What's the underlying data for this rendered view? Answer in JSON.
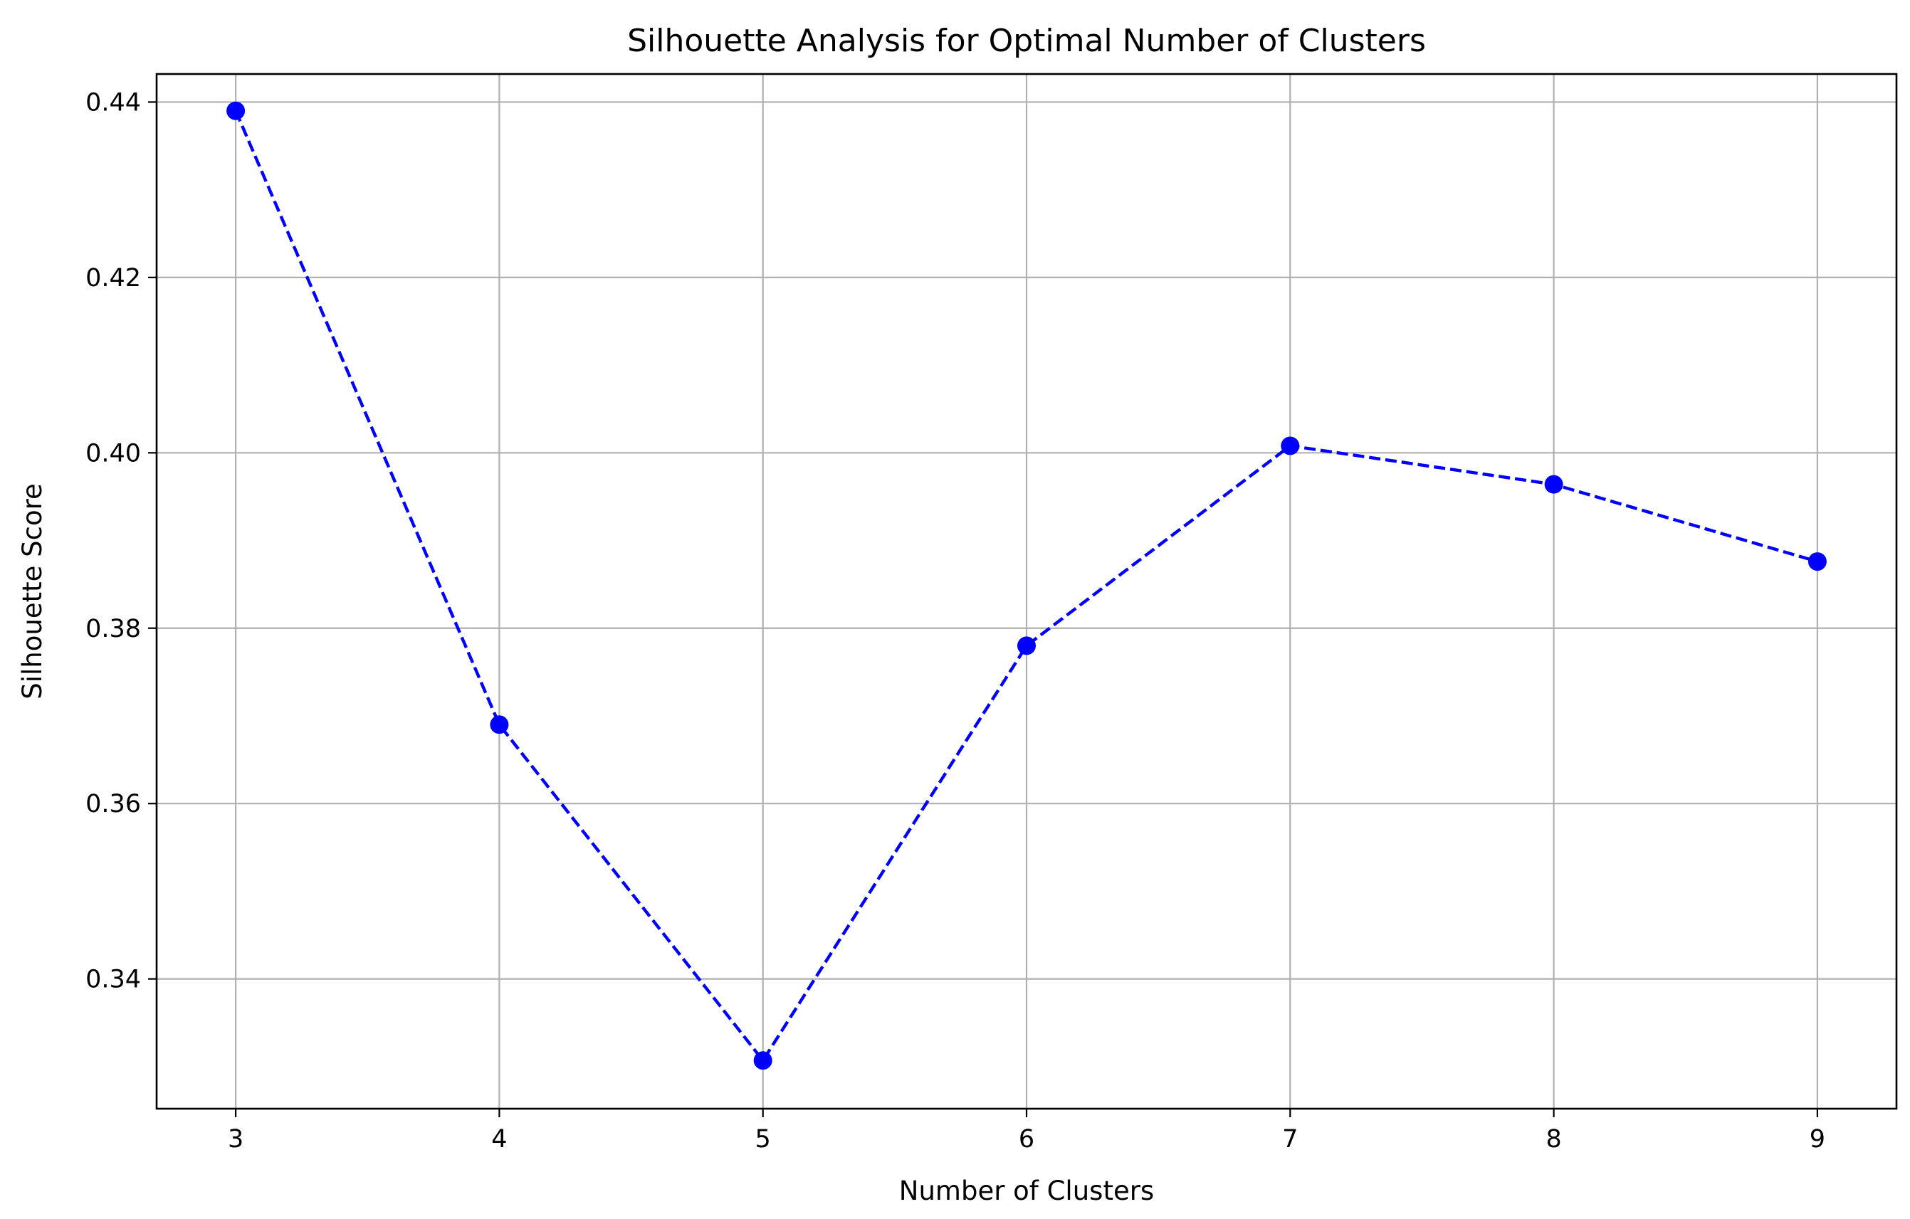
{
  "chart_data": {
    "type": "line",
    "title": "Silhouette Analysis for Optimal Number of Clusters",
    "xlabel": "Number of Clusters",
    "ylabel": "Silhouette Score",
    "x": [
      3,
      4,
      5,
      6,
      7,
      8,
      9
    ],
    "series": [
      {
        "values": [
          0.439,
          0.369,
          0.3307,
          0.378,
          0.4008,
          0.3964,
          0.3876
        ],
        "color": "#0000ff",
        "line_style": "dashed",
        "marker": "circle"
      }
    ],
    "xticks": [
      "3",
      "4",
      "5",
      "6",
      "7",
      "8",
      "9"
    ],
    "yticks": [
      "0.34",
      "0.36",
      "0.38",
      "0.40",
      "0.42",
      "0.44"
    ],
    "xlim": [
      2.7,
      9.3
    ],
    "ylim": [
      0.3252,
      0.4432
    ],
    "grid": true,
    "legend": false
  }
}
